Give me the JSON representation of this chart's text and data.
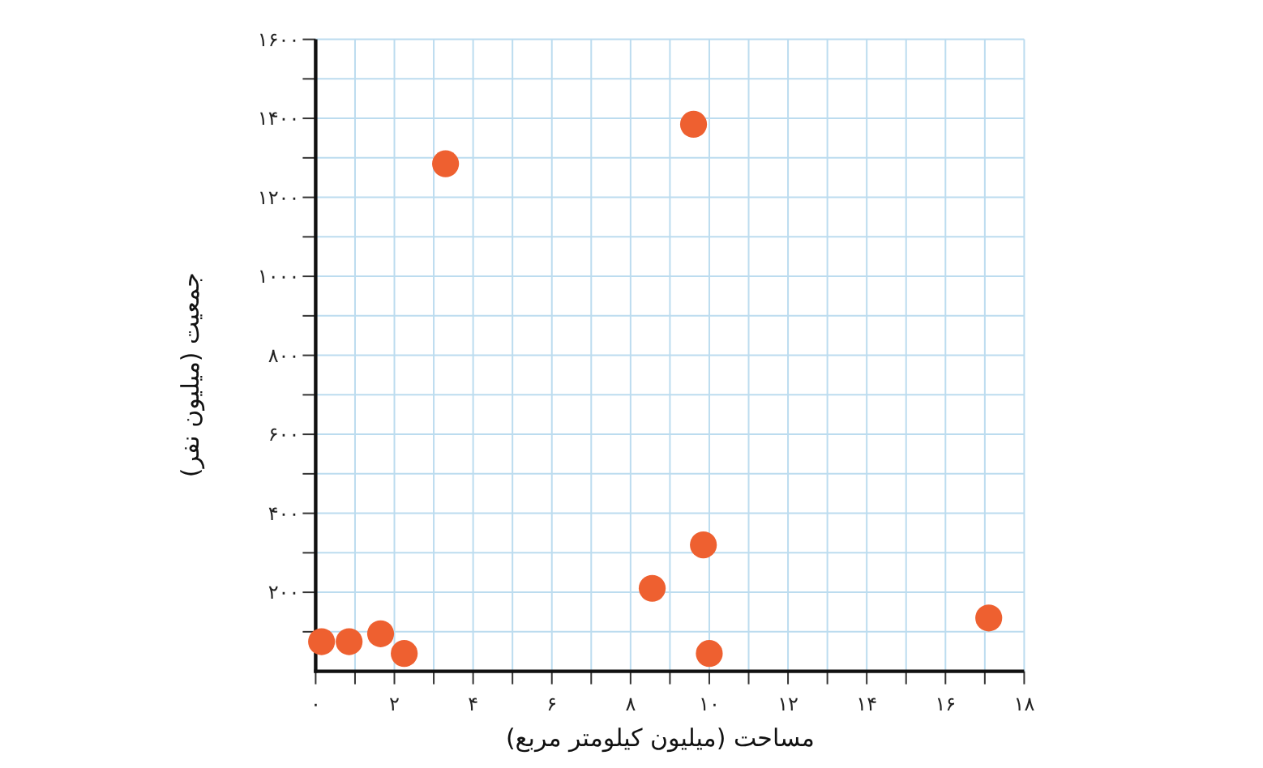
{
  "chart_data": {
    "type": "scatter",
    "xlabel": "مساحت (میلیون کیلومتر مربع)",
    "ylabel": "جمعیت (میلیون نفر)",
    "x": [
      0.15,
      0.85,
      1.65,
      2.25,
      3.3,
      8.55,
      9.6,
      9.85,
      10.0,
      17.1
    ],
    "values": [
      75,
      75,
      95,
      45,
      1285,
      210,
      1385,
      320,
      45,
      135
    ],
    "color": "#ee6030",
    "marker": "circle",
    "xlim": [
      0,
      18
    ],
    "ylim": [
      0,
      1600
    ],
    "xticks": [
      {
        "value": 0,
        "label": "۰"
      },
      {
        "value": 2,
        "label": "۲"
      },
      {
        "value": 4,
        "label": "۴"
      },
      {
        "value": 6,
        "label": "۶"
      },
      {
        "value": 8,
        "label": "۸"
      },
      {
        "value": 10,
        "label": "۱۰"
      },
      {
        "value": 12,
        "label": "۱۲"
      },
      {
        "value": 14,
        "label": "۱۴"
      },
      {
        "value": 16,
        "label": "۱۶"
      },
      {
        "value": 18,
        "label": "۱۸"
      }
    ],
    "yticks": [
      {
        "value": 200,
        "label": "۲۰۰"
      },
      {
        "value": 400,
        "label": "۴۰۰"
      },
      {
        "value": 600,
        "label": "۶۰۰"
      },
      {
        "value": 800,
        "label": "۸۰۰"
      },
      {
        "value": 1000,
        "label": "۱۰۰۰"
      },
      {
        "value": 1200,
        "label": "۱۲۰۰"
      },
      {
        "value": 1400,
        "label": "۱۴۰۰"
      },
      {
        "value": 1600,
        "label": "۱۶۰۰"
      }
    ],
    "grid": true
  }
}
